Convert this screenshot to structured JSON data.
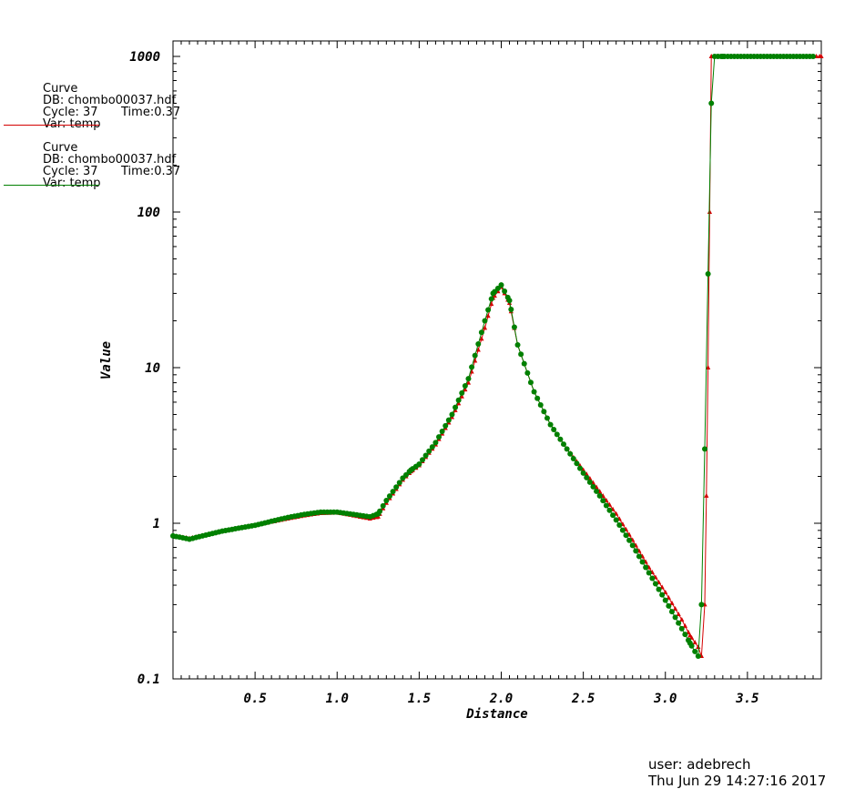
{
  "legend": [
    {
      "title": "Curve",
      "db": "DB: chombo00037.hdf",
      "cycle": "Cycle: 37",
      "time": "Time:0.37",
      "var": "Var: temp",
      "color": "#d40000"
    },
    {
      "title": "Curve",
      "db": "DB: chombo00037.hdf",
      "cycle": "Cycle: 37",
      "time": "Time:0.37",
      "var": "Var: temp",
      "color": "#008000"
    }
  ],
  "footer": {
    "user": "user: adebrech",
    "date": "Thu Jun 29 14:27:16 2017"
  },
  "chart_data": {
    "type": "line",
    "xlabel": "Distance",
    "ylabel": "Value",
    "xlim": [
      0,
      3.95
    ],
    "ylim": [
      0.1,
      1000
    ],
    "yscale": "log",
    "xticks": [
      0.5,
      1.0,
      1.5,
      2.0,
      2.5,
      3.0,
      3.5
    ],
    "xtick_labels": [
      "0.5",
      "1.0",
      "1.5",
      "2.0",
      "2.5",
      "3.0",
      "3.5"
    ],
    "yticks": [
      0.1,
      1,
      10,
      100,
      1000
    ],
    "ytick_labels": [
      "0.1",
      "1",
      "10",
      "100",
      "1000"
    ],
    "grid": false,
    "series": [
      {
        "color": "#d40000",
        "marker": "triangle",
        "x": [
          0.0,
          0.1,
          0.2,
          0.3,
          0.4,
          0.5,
          0.6,
          0.7,
          0.8,
          0.9,
          1.0,
          1.1,
          1.2,
          1.25,
          1.3,
          1.4,
          1.45,
          1.5,
          1.6,
          1.7,
          1.8,
          1.9,
          1.95,
          2.0,
          2.05,
          2.1,
          2.2,
          2.3,
          2.4,
          2.5,
          2.6,
          2.7,
          2.8,
          2.9,
          3.0,
          3.1,
          3.15,
          3.2,
          3.22,
          3.24,
          3.25,
          3.26,
          3.27,
          3.28,
          3.35,
          3.5,
          3.7,
          3.95
        ],
        "y": [
          0.83,
          0.8,
          0.84,
          0.89,
          0.93,
          0.97,
          1.02,
          1.07,
          1.12,
          1.16,
          1.17,
          1.12,
          1.07,
          1.1,
          1.35,
          1.9,
          2.15,
          2.35,
          3.2,
          4.8,
          8.0,
          18.0,
          28.0,
          33.0,
          26.0,
          14.0,
          7.0,
          4.3,
          3.0,
          2.2,
          1.6,
          1.15,
          0.78,
          0.52,
          0.36,
          0.24,
          0.19,
          0.16,
          0.14,
          0.3,
          1.5,
          10.0,
          100.0,
          1000.0,
          1000.0,
          1000.0,
          1000.0,
          1000.0
        ]
      },
      {
        "color": "#008000",
        "marker": "circle",
        "x": [
          0.0,
          0.1,
          0.2,
          0.3,
          0.4,
          0.5,
          0.6,
          0.7,
          0.8,
          0.9,
          1.0,
          1.1,
          1.2,
          1.25,
          1.3,
          1.4,
          1.45,
          1.5,
          1.6,
          1.7,
          1.8,
          1.9,
          1.95,
          2.0,
          2.05,
          2.1,
          2.2,
          2.3,
          2.4,
          2.5,
          2.6,
          2.7,
          2.8,
          2.9,
          3.0,
          3.1,
          3.15,
          3.18,
          3.2,
          3.22,
          3.24,
          3.26,
          3.28,
          3.3,
          3.35,
          3.5,
          3.7,
          3.9
        ],
        "y": [
          0.83,
          0.79,
          0.84,
          0.89,
          0.93,
          0.97,
          1.03,
          1.09,
          1.14,
          1.18,
          1.18,
          1.14,
          1.1,
          1.15,
          1.4,
          1.95,
          2.2,
          2.4,
          3.3,
          5.0,
          8.5,
          20.0,
          30.0,
          34.0,
          27.0,
          14.0,
          7.0,
          4.3,
          3.0,
          2.1,
          1.5,
          1.05,
          0.72,
          0.48,
          0.32,
          0.21,
          0.17,
          0.15,
          0.14,
          0.3,
          3.0,
          40.0,
          500.0,
          1000.0,
          1000.0,
          1000.0,
          1000.0,
          1000.0
        ]
      }
    ]
  }
}
